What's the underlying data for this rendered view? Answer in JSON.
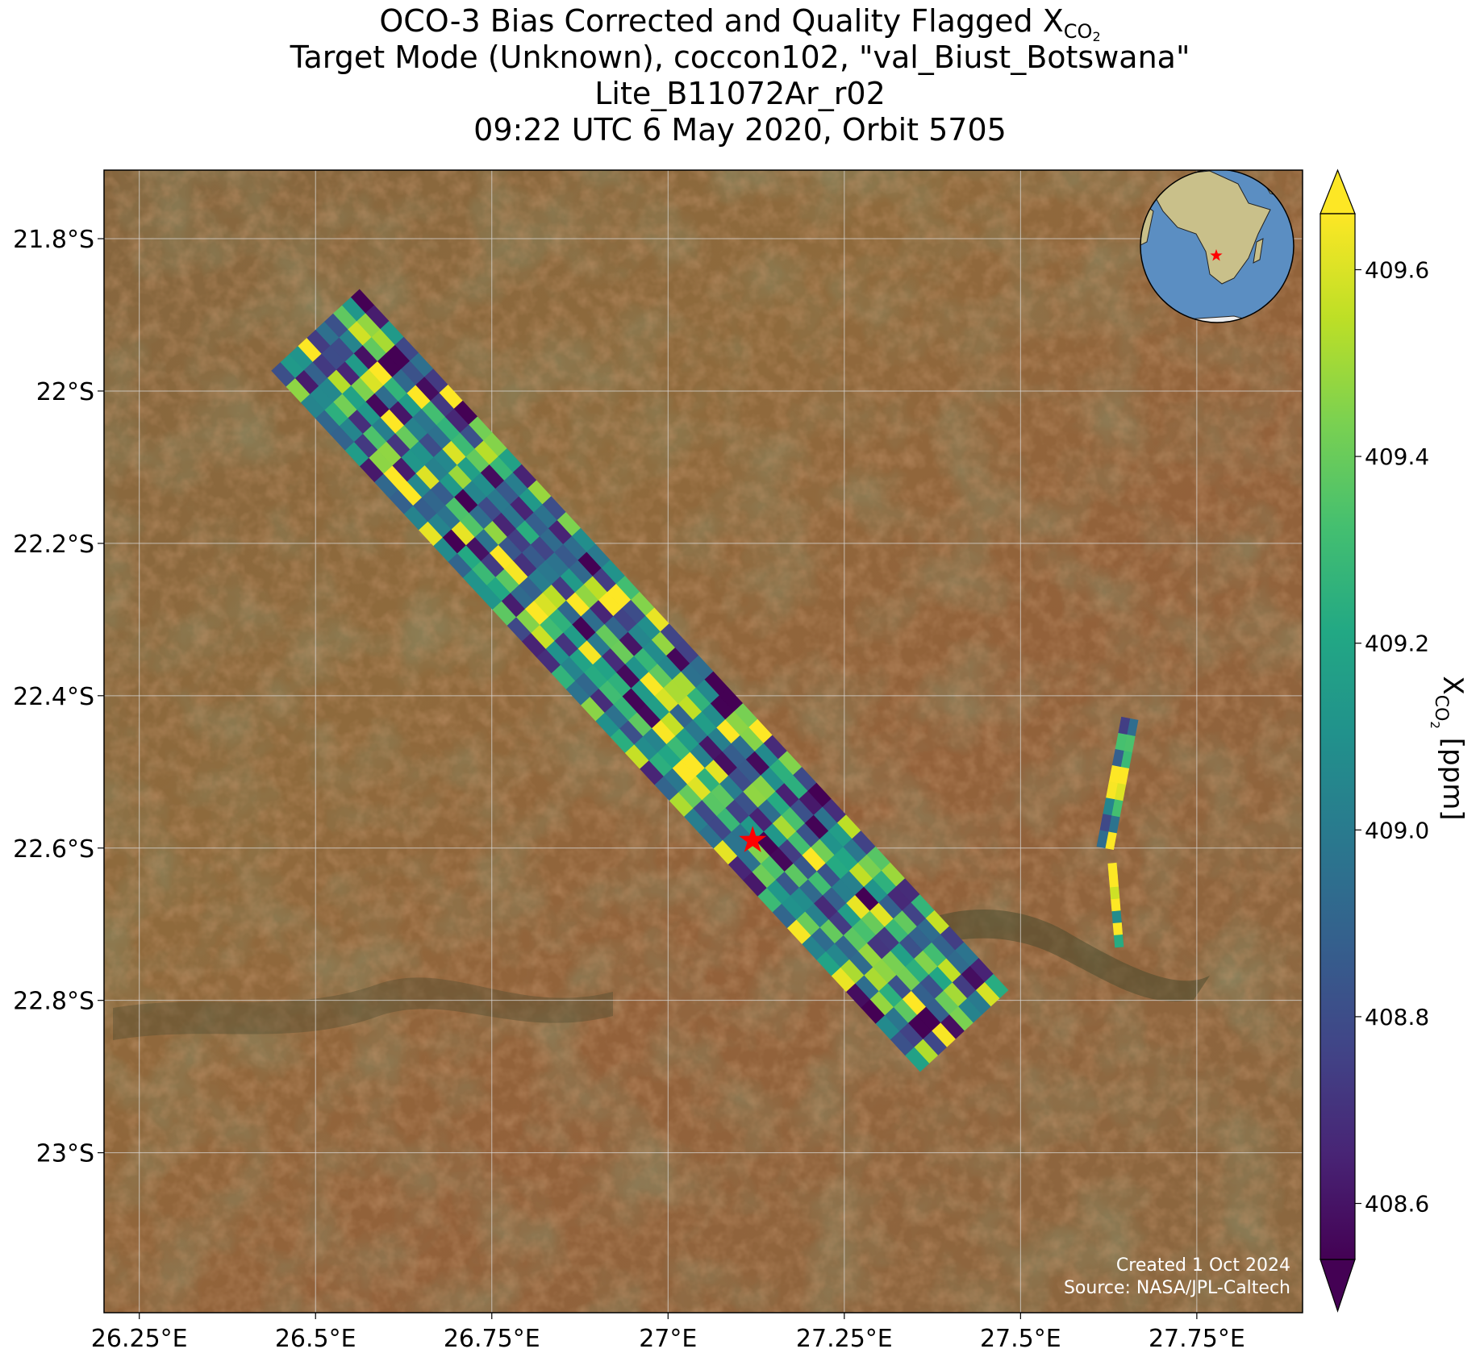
{
  "title": {
    "line1_prefix": "OCO-3 Bias Corrected and Quality Flagged X",
    "line1_sub": "CO",
    "line1_sub2": "2",
    "line2": "Target Mode (Unknown), coccon102, \"val_Biust_Botswana\"",
    "line3": "Lite_B11072Ar_r02",
    "line4": "09:22 UTC 6 May 2020, Orbit 5705"
  },
  "map": {
    "lon_range": [
      26.2,
      27.9
    ],
    "lat_range": [
      -23.21,
      -21.71
    ],
    "x_ticks": [
      26.25,
      26.5,
      26.75,
      27.0,
      27.25,
      27.5,
      27.75
    ],
    "x_tick_labels": [
      "26.25°E",
      "26.5°E",
      "26.75°E",
      "27°E",
      "27.25°E",
      "27.5°E",
      "27.75°E"
    ],
    "y_ticks": [
      -21.8,
      -22.0,
      -22.2,
      -22.4,
      -22.6,
      -22.8,
      -23.0
    ],
    "y_tick_labels": [
      "21.8°S",
      "22°S",
      "22.2°S",
      "22.4°S",
      "22.6°S",
      "22.8°S",
      "23°S"
    ],
    "target_site": {
      "lon": 27.12,
      "lat": -22.59,
      "marker": "red-star"
    },
    "inset_globe": {
      "center_lon": 20,
      "center_lat": -10,
      "target_marker": "red-star"
    }
  },
  "colorbar": {
    "label_prefix": "X",
    "label_sub": "CO",
    "label_sub2": "2",
    "label_suffix": " [ppm]",
    "vmin": 408.54,
    "vmax": 409.66,
    "ticks": [
      408.6,
      408.8,
      409.0,
      409.2,
      409.4,
      409.6
    ],
    "tick_labels": [
      "408.6",
      "408.8",
      "409.0",
      "409.2",
      "409.4",
      "409.6"
    ],
    "colormap": "viridis",
    "extend": "both"
  },
  "chart_data": {
    "type": "heatmap",
    "variable": "XCO2 (ppm)",
    "swaths": [
      {
        "lon0": 26.5,
        "lat0": -21.92,
        "lon1": 27.42,
        "lat1": -22.84,
        "half_width_deg": 0.085,
        "along_cells": 44,
        "across_cells": 10,
        "mean_ppm": 409.1
      },
      {
        "lon0": 27.655,
        "lat0": -22.43,
        "lon1": 27.62,
        "lat1": -22.6,
        "half_width_deg": 0.012,
        "along_cells": 8,
        "across_cells": 2,
        "mean_ppm": 409.3
      },
      {
        "lon0": 27.63,
        "lat0": -22.62,
        "lon1": 27.64,
        "lat1": -22.73,
        "half_width_deg": 0.006,
        "along_cells": 7,
        "across_cells": 1,
        "mean_ppm": 409.5
      }
    ]
  },
  "credit": {
    "line1": "Created 1 Oct 2024",
    "line2": "Source: NASA/JPL-Caltech"
  },
  "colors": {
    "marker": "#ff0000",
    "grid": "#d9d9d9",
    "ocean": "#5b8ec2",
    "land_base": "#8a6a3f"
  }
}
